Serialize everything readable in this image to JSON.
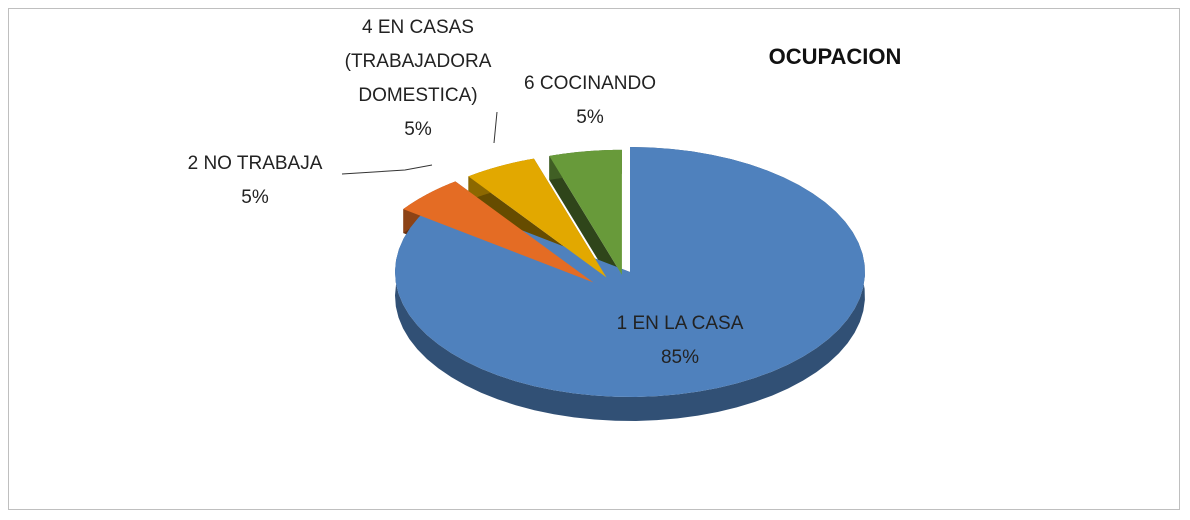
{
  "chart_data": {
    "type": "pie3d",
    "title": "OCUPACION",
    "categories": [
      "1 EN LA CASA",
      "2 NO TRABAJA",
      "4 EN CASAS (TRABAJADORA DOMESTICA)",
      "6 COCINANDO"
    ],
    "values": [
      85,
      5,
      5,
      5
    ],
    "value_labels": [
      "85%",
      "5%",
      "5%",
      "5%"
    ],
    "colors": [
      "#4f81bd",
      "#e46c24",
      "#e2a800",
      "#689a3a"
    ]
  }
}
